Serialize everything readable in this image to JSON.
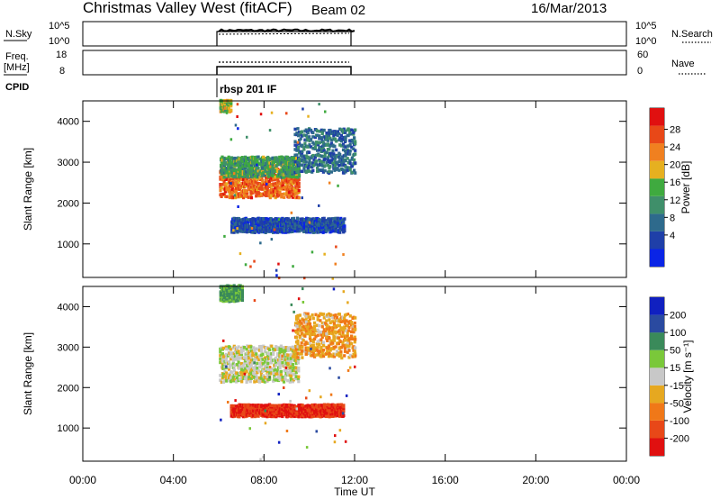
{
  "header": {
    "title": "Christmas Valley West (fitACF)",
    "beam": "Beam 02",
    "date": "16/Mar/2013"
  },
  "small_panels": {
    "nsky_label": "N.Sky",
    "nsky_ticks": [
      "10^5",
      "10^0"
    ],
    "nsearch_label": "N.Search",
    "nsearch_ticks": [
      "10^5",
      "10^0"
    ],
    "freq_label_line1": "Freq.",
    "freq_label_line2": "[MHz]",
    "freq_ticks": [
      "18",
      "8"
    ],
    "nave_label": "Nave",
    "nave_ticks": [
      "60",
      "0"
    ],
    "cpid_label": "CPID",
    "cpid_value": "rbsp 201 IF"
  },
  "colors": {
    "power": [
      "#0a24e6",
      "#1f3fa8",
      "#2e6a8c",
      "#3f8f6a",
      "#3faa3f",
      "#e6b020",
      "#f08020",
      "#e84818",
      "#e01010"
    ],
    "velocity": [
      "#e01010",
      "#e84818",
      "#f07818",
      "#e6a820",
      "#c8c8c8",
      "#7ac83a",
      "#3a8a5a",
      "#2a4aa0",
      "#1020c0"
    ]
  },
  "chart_data": [
    {
      "type": "heatmap",
      "name": "power",
      "xlabel": "Time UT",
      "ylabel": "Slant Range [km]",
      "x_range_hours": [
        0,
        24
      ],
      "ylim": [
        180,
        4500
      ],
      "yticks": [
        1000,
        2000,
        3000,
        4000
      ],
      "colorbar_label": "Power [dB]",
      "colorbar_ticks": [
        "28",
        "24",
        "20",
        "16",
        "12",
        "8",
        "4"
      ],
      "observed_interval_hours": [
        6.0,
        12.0
      ],
      "echo_regions": [
        {
          "t_start": 6.0,
          "t_end": 9.5,
          "r_min": 2100,
          "r_max": 2800,
          "power_db": 28
        },
        {
          "t_start": 6.0,
          "t_end": 9.5,
          "r_min": 2600,
          "r_max": 3100,
          "power_db": 16
        },
        {
          "t_start": 9.3,
          "t_end": 12.0,
          "r_min": 2700,
          "r_max": 3800,
          "power_db": 10
        },
        {
          "t_start": 6.5,
          "t_end": 11.5,
          "r_min": 1250,
          "r_max": 1600,
          "power_db": 7
        },
        {
          "t_start": 6.0,
          "t_end": 6.5,
          "r_min": 4200,
          "r_max": 4500,
          "power_db": 20
        }
      ]
    },
    {
      "type": "heatmap",
      "name": "velocity",
      "xlabel": "Time UT",
      "ylabel": "Slant Range [km]",
      "x_range_hours": [
        0,
        24
      ],
      "ylim": [
        180,
        4500
      ],
      "yticks": [
        1000,
        2000,
        3000,
        4000
      ],
      "colorbar_label": "Velocity [m s⁻¹]",
      "colorbar_ticks": [
        "200",
        "100",
        "50",
        "15",
        "-15",
        "-50",
        "-100",
        "-200"
      ],
      "observed_interval_hours": [
        6.0,
        12.0
      ],
      "echo_regions": [
        {
          "t_start": 6.0,
          "t_end": 9.5,
          "r_min": 2100,
          "r_max": 3000,
          "velocity_ms": 0
        },
        {
          "t_start": 9.3,
          "t_end": 12.0,
          "r_min": 2700,
          "r_max": 3800,
          "velocity_ms": -40
        },
        {
          "t_start": 6.5,
          "t_end": 11.5,
          "r_min": 1250,
          "r_max": 1550,
          "velocity_ms": -200
        },
        {
          "t_start": 6.0,
          "t_end": 7.0,
          "r_min": 4100,
          "r_max": 4500,
          "velocity_ms": 60
        }
      ]
    }
  ],
  "time_axis": {
    "ticks": [
      "00:00",
      "04:00",
      "08:00",
      "12:00",
      "16:00",
      "20:00",
      "00:00"
    ],
    "label": "Time UT"
  }
}
